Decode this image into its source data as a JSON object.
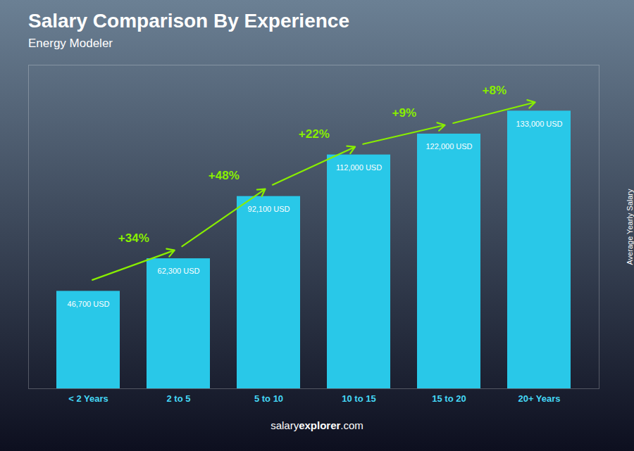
{
  "chart_data": {
    "type": "bar",
    "title": "Salary Comparison By Experience",
    "subtitle": "Energy Modeler",
    "categories": [
      "< 2 Years",
      "2 to 5",
      "5 to 10",
      "10 to 15",
      "15 to 20",
      "20+ Years"
    ],
    "values": [
      46700,
      62300,
      92100,
      112000,
      122000,
      133000
    ],
    "value_labels": [
      "46,700 USD",
      "62,300 USD",
      "92,100 USD",
      "112,000 USD",
      "122,000 USD",
      "133,000 USD"
    ],
    "data_labels": true,
    "color": "#29C8E8",
    "ylabel": "Average Yearly Salary",
    "ylim": [
      0,
      155000
    ],
    "tick_labels": "x",
    "annotations": [
      "+34%",
      "+48%",
      "+22%",
      "+9%",
      "+8%"
    ],
    "footer": [
      "salary",
      "explorer",
      ".com"
    ]
  }
}
